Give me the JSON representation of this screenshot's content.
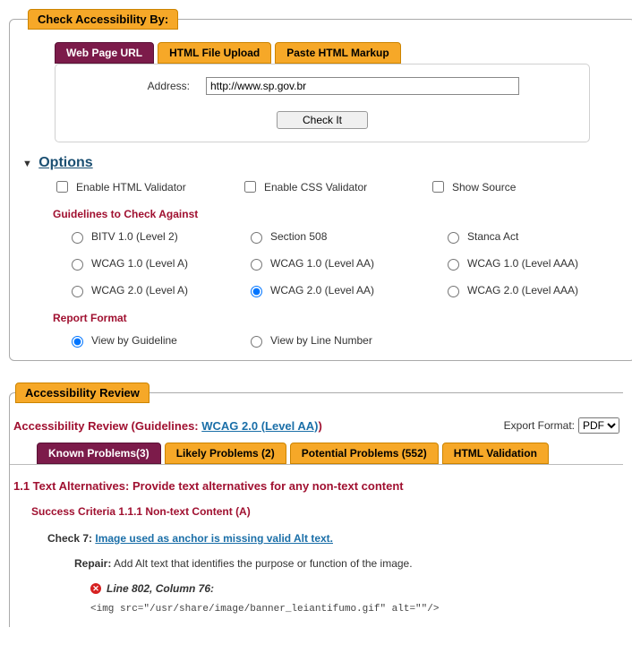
{
  "fieldset1": {
    "legend": "Check Accessibility By:",
    "tabs": {
      "url": "Web Page URL",
      "upload": "HTML File Upload",
      "paste": "Paste HTML Markup"
    },
    "address": {
      "label": "Address:",
      "value": "http://www.sp.gov.br"
    },
    "check_btn": "Check It",
    "options_label": "Options",
    "checks": {
      "html_val": "Enable HTML Validator",
      "css_val": "Enable CSS Validator",
      "show_src": "Show Source"
    },
    "guidelines_head": "Guidelines to Check Against",
    "guidelines": {
      "bitv": "BITV 1.0 (Level 2)",
      "s508": "Section 508",
      "stanca": "Stanca Act",
      "w1a": "WCAG 1.0 (Level A)",
      "w1aa": "WCAG 1.0 (Level AA)",
      "w1aaa": "WCAG 1.0 (Level AAA)",
      "w2a": "WCAG 2.0 (Level A)",
      "w2aa": "WCAG 2.0 (Level AA)",
      "w2aaa": "WCAG 2.0 (Level AAA)"
    },
    "format_head": "Report Format",
    "formats": {
      "guideline": "View by Guideline",
      "line": "View by Line Number"
    }
  },
  "review": {
    "legend": "Accessibility Review",
    "title_prefix": "Accessibility Review (Guidelines: ",
    "title_link": "WCAG 2.0 (Level AA)",
    "title_suffix": ")",
    "export_label": "Export Format:",
    "export_value": "PDF",
    "tabs": {
      "known": "Known Problems(3)",
      "likely": "Likely Problems (2)",
      "potential": "Potential Problems (552)",
      "htmlval": "HTML Validation"
    },
    "section_h": "1.1 Text Alternatives: Provide text alternatives for any non-text content",
    "criteria_h": "Success Criteria 1.1.1 Non-text Content (A)",
    "check_prefix": "Check 7: ",
    "check_link": "Image used as anchor is missing valid Alt text.",
    "repair_label": "Repair:",
    "repair_text": " Add Alt text that identifies the purpose or function of the image.",
    "loc": "Line 802, Column 76",
    "code": "<img src=\"/usr/share/image/banner_leiantifumo.gif\" alt=\"\"/>"
  },
  "colors": {
    "accent_orange": "#f6a828",
    "accent_purple": "#7c1b4a",
    "heading_red": "#a01030",
    "link_blue": "#1b6fa8",
    "border_gray": "#aaaaaa"
  }
}
